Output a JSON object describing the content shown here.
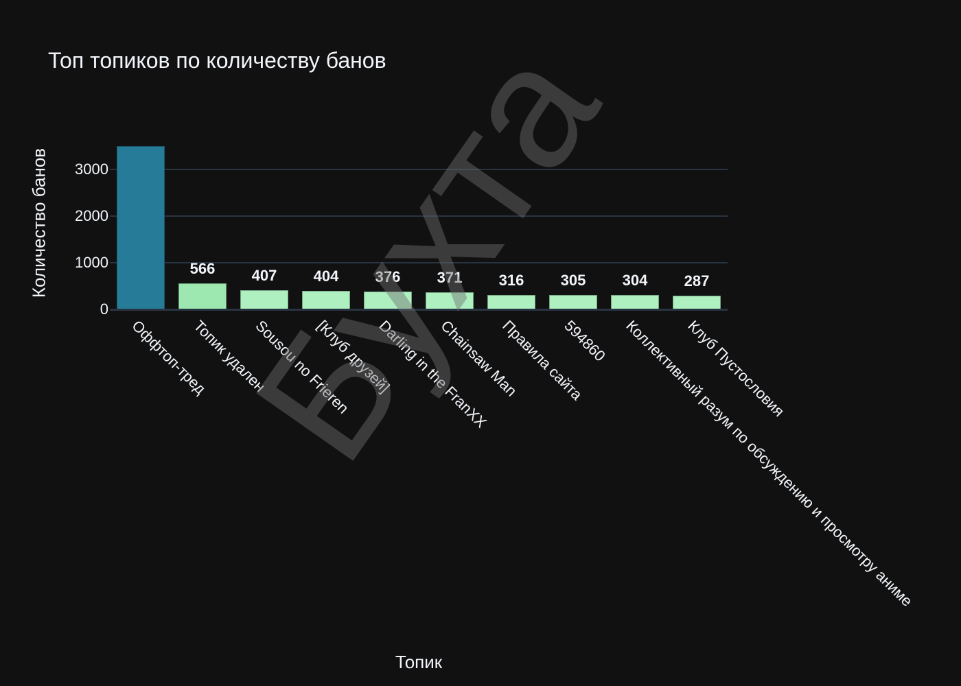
{
  "title": "Топ топиков по количеству банов",
  "watermark": "Бухта",
  "axes": {
    "xlabel": "Топик",
    "ylabel": "Количество банов",
    "yticks": [
      "0",
      "1000",
      "2000",
      "3000"
    ]
  },
  "colors": {
    "background": "#111111",
    "grid": "#283442",
    "bar_max": "#267c98",
    "bar_second": "#9de8b0",
    "bar_rest": "#aef0bf"
  },
  "chart_data": {
    "type": "bar",
    "title": "Топ топиков по количеству банов",
    "xlabel": "Топик",
    "ylabel": "Количество банов",
    "categories": [
      "Оффтоп-тред",
      "Топик удален",
      "Sousou no Frieren",
      "[Клуб друзей]",
      "Darling in the FranXX",
      "Chainsaw Man",
      "Правила сайта",
      "594860",
      "Коллективный разум по обсуждению и просмотру аниме",
      "Клуб Пустословия"
    ],
    "values": [
      3500,
      566,
      407,
      404,
      376,
      371,
      316,
      305,
      304,
      287
    ],
    "value_labels": [
      "",
      "566",
      "407",
      "404",
      "376",
      "371",
      "316",
      "305",
      "304",
      "287"
    ],
    "ylim": [
      0,
      3690
    ],
    "yticks": [
      0,
      1000,
      2000,
      3000
    ],
    "grid": true,
    "legend": null,
    "note": "First bar value label is clipped at top of plot; value estimated from bar height"
  }
}
